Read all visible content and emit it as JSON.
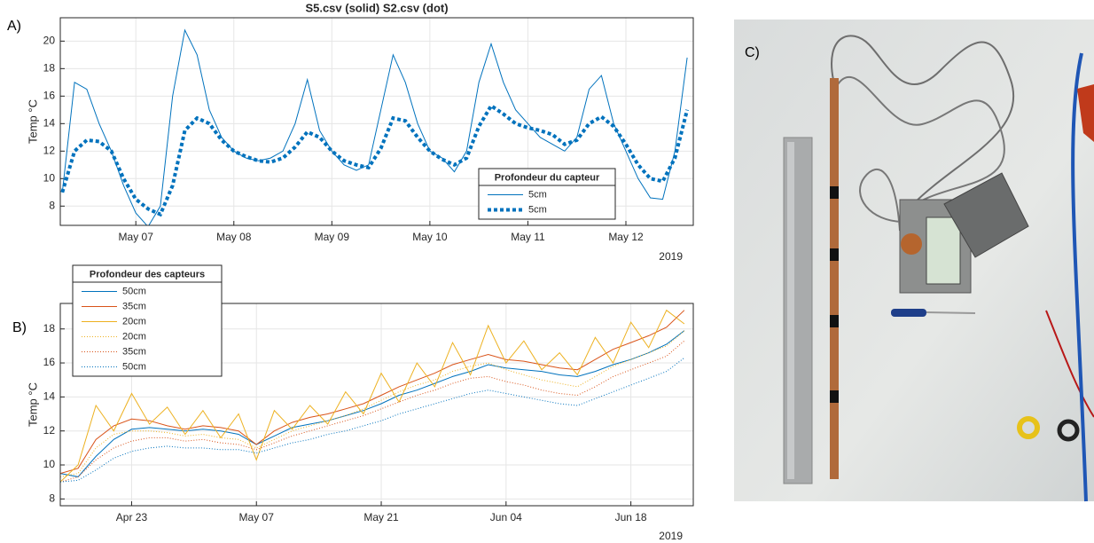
{
  "chart_data": [
    {
      "type": "line",
      "panel": "A)",
      "title": "S5.csv (solid) S2.csv (dot)",
      "ylabel": "Temp °C",
      "x_year": "2019",
      "x": [
        "2019-05-06T06:00",
        "2019-05-06T09:00",
        "2019-05-06T12:00",
        "2019-05-06T15:00",
        "2019-05-06T18:00",
        "2019-05-06T21:00",
        "2019-05-07T00:00",
        "2019-05-07T03:00",
        "2019-05-07T06:00",
        "2019-05-07T09:00",
        "2019-05-07T12:00",
        "2019-05-07T15:00",
        "2019-05-07T18:00",
        "2019-05-07T21:00",
        "2019-05-08T00:00",
        "2019-05-08T03:00",
        "2019-05-08T06:00",
        "2019-05-08T09:00",
        "2019-05-08T12:00",
        "2019-05-08T15:00",
        "2019-05-08T18:00",
        "2019-05-08T21:00",
        "2019-05-09T00:00",
        "2019-05-09T03:00",
        "2019-05-09T06:00",
        "2019-05-09T09:00",
        "2019-05-09T12:00",
        "2019-05-09T15:00",
        "2019-05-09T18:00",
        "2019-05-09T21:00",
        "2019-05-10T00:00",
        "2019-05-10T03:00",
        "2019-05-10T06:00",
        "2019-05-10T09:00",
        "2019-05-10T12:00",
        "2019-05-10T15:00",
        "2019-05-10T18:00",
        "2019-05-10T21:00",
        "2019-05-11T00:00",
        "2019-05-11T03:00",
        "2019-05-11T06:00",
        "2019-05-11T09:00",
        "2019-05-11T12:00",
        "2019-05-11T15:00",
        "2019-05-11T18:00",
        "2019-05-11T21:00",
        "2019-05-12T00:00",
        "2019-05-12T03:00",
        "2019-05-12T06:00",
        "2019-05-12T09:00",
        "2019-05-12T12:00",
        "2019-05-12T15:00"
      ],
      "series": [
        {
          "name": "5cm",
          "color": "#0072bd",
          "linestyle": "solid",
          "values": [
            9,
            17,
            16.5,
            14,
            12,
            9.5,
            7.5,
            6.5,
            8,
            16,
            20.8,
            19,
            15,
            13,
            12,
            11.5,
            11.3,
            11.5,
            12,
            14,
            17.2,
            13.5,
            12,
            11,
            10.6,
            11,
            15,
            19,
            17,
            14,
            12,
            11.5,
            10.5,
            12,
            17,
            19.8,
            17,
            15,
            14,
            13,
            12.5,
            12,
            13,
            16.5,
            17.5,
            14,
            12,
            10,
            8.6,
            8.5,
            12,
            18.8
          ]
        },
        {
          "name": "5cm",
          "color": "#0072bd",
          "linestyle": "dotted",
          "values": [
            9,
            12,
            12.8,
            12.7,
            12,
            10,
            8.5,
            7.8,
            7.4,
            9.5,
            13.5,
            14.4,
            14,
            12.8,
            12,
            11.6,
            11.3,
            11.2,
            11.5,
            12.3,
            13.4,
            13,
            12,
            11.3,
            11,
            10.8,
            12.2,
            14.4,
            14.2,
            13,
            12,
            11.4,
            11,
            11.5,
            13.8,
            15.3,
            14.7,
            14,
            13.7,
            13.5,
            13.2,
            12.5,
            12.8,
            14,
            14.5,
            13.8,
            12.5,
            11,
            10,
            9.8,
            11.5,
            15
          ]
        }
      ],
      "xlim": [
        "2019-05-06T05:30",
        "2019-05-12T16:30"
      ],
      "xticks": [
        {
          "value": "2019-05-07",
          "label": "May 07"
        },
        {
          "value": "2019-05-08",
          "label": "May 08"
        },
        {
          "value": "2019-05-09",
          "label": "May 09"
        },
        {
          "value": "2019-05-10",
          "label": "May 10"
        },
        {
          "value": "2019-05-11",
          "label": "May 11"
        },
        {
          "value": "2019-05-12",
          "label": "May 12"
        }
      ],
      "ylim": [
        6.6,
        21.7
      ],
      "yticks": [
        8,
        10,
        12,
        14,
        16,
        18,
        20
      ],
      "grid": true,
      "legend_title": "Profondeur du capteur",
      "legend_loc": "southeast"
    },
    {
      "type": "line",
      "panel": "B)",
      "ylabel": "Temp °C",
      "x_year": "2019",
      "x": [
        "2019-04-15",
        "2019-04-17",
        "2019-04-19",
        "2019-04-21",
        "2019-04-23",
        "2019-04-25",
        "2019-04-27",
        "2019-04-29",
        "2019-05-01",
        "2019-05-03",
        "2019-05-05",
        "2019-05-07",
        "2019-05-09",
        "2019-05-11",
        "2019-05-13",
        "2019-05-15",
        "2019-05-17",
        "2019-05-19",
        "2019-05-21",
        "2019-05-23",
        "2019-05-25",
        "2019-05-27",
        "2019-05-29",
        "2019-05-31",
        "2019-06-02",
        "2019-06-04",
        "2019-06-06",
        "2019-06-08",
        "2019-06-10",
        "2019-06-12",
        "2019-06-14",
        "2019-06-16",
        "2019-06-18",
        "2019-06-20",
        "2019-06-22",
        "2019-06-24"
      ],
      "series": [
        {
          "name": "50cm",
          "color": "#0072bd",
          "linestyle": "solid",
          "values": [
            9.5,
            9.3,
            10.5,
            11.5,
            12.1,
            12.2,
            12.1,
            12.0,
            12.1,
            12.0,
            11.8,
            11.2,
            11.7,
            12.2,
            12.4,
            12.6,
            12.9,
            13.2,
            13.6,
            14.1,
            14.4,
            14.8,
            15.2,
            15.5,
            15.9,
            15.7,
            15.6,
            15.5,
            15.3,
            15.2,
            15.5,
            15.9,
            16.2,
            16.6,
            17.1,
            17.9
          ]
        },
        {
          "name": "35cm",
          "color": "#d95319",
          "linestyle": "solid",
          "values": [
            9.5,
            9.8,
            11.5,
            12.3,
            12.7,
            12.6,
            12.3,
            12.1,
            12.3,
            12.2,
            12.0,
            11.2,
            12.0,
            12.5,
            12.8,
            13.0,
            13.3,
            13.6,
            14.1,
            14.6,
            15.0,
            15.4,
            15.9,
            16.2,
            16.5,
            16.2,
            16.1,
            15.9,
            15.7,
            15.6,
            16.2,
            16.8,
            17.2,
            17.6,
            18.1,
            19.1
          ]
        },
        {
          "name": "20cm",
          "color": "#edb120",
          "linestyle": "solid",
          "values": [
            9.0,
            10.0,
            13.5,
            12.0,
            14.2,
            12.4,
            13.4,
            11.8,
            13.2,
            11.6,
            13.0,
            10.3,
            13.2,
            12.1,
            13.5,
            12.4,
            14.3,
            13.0,
            15.4,
            13.7,
            16.0,
            14.6,
            17.2,
            15.3,
            18.2,
            16.0,
            17.3,
            15.6,
            16.6,
            15.3,
            17.5,
            16.0,
            18.4,
            16.9,
            19.1,
            18.3
          ]
        },
        {
          "name": "20cm",
          "color": "#edb120",
          "linestyle": "dotted",
          "values": [
            9.3,
            9.5,
            11.0,
            11.8,
            12.0,
            12.0,
            11.9,
            11.7,
            11.8,
            11.6,
            11.5,
            11.0,
            11.5,
            12.0,
            12.3,
            12.6,
            12.9,
            13.3,
            13.8,
            14.3,
            14.7,
            15.0,
            15.5,
            15.8,
            16.0,
            15.6,
            15.3,
            15.0,
            14.8,
            14.6,
            15.2,
            15.8,
            16.2,
            16.6,
            17.0,
            17.9
          ]
        },
        {
          "name": "35cm",
          "color": "#d95319",
          "linestyle": "dotted",
          "values": [
            9.0,
            9.3,
            10.3,
            11.0,
            11.4,
            11.6,
            11.6,
            11.4,
            11.5,
            11.3,
            11.2,
            10.9,
            11.3,
            11.7,
            12.0,
            12.3,
            12.6,
            12.9,
            13.3,
            13.7,
            14.1,
            14.4,
            14.8,
            15.1,
            15.2,
            14.9,
            14.7,
            14.4,
            14.2,
            14.1,
            14.6,
            15.2,
            15.6,
            16.0,
            16.4,
            17.3
          ]
        },
        {
          "name": "50cm",
          "color": "#0072bd",
          "linestyle": "dotted",
          "values": [
            9.0,
            9.1,
            9.7,
            10.4,
            10.8,
            11.0,
            11.1,
            11.0,
            11.0,
            10.9,
            10.9,
            10.7,
            11.0,
            11.3,
            11.5,
            11.8,
            12.0,
            12.3,
            12.6,
            13.0,
            13.3,
            13.6,
            13.9,
            14.2,
            14.4,
            14.2,
            14.0,
            13.8,
            13.6,
            13.5,
            13.9,
            14.3,
            14.7,
            15.1,
            15.5,
            16.3
          ]
        }
      ],
      "xlim": [
        "2019-04-15",
        "2019-06-25"
      ],
      "xticks": [
        {
          "value": "2019-04-23",
          "label": "Apr 23"
        },
        {
          "value": "2019-05-07",
          "label": "May 07"
        },
        {
          "value": "2019-05-21",
          "label": "May 21"
        },
        {
          "value": "2019-06-04",
          "label": "Jun 04"
        },
        {
          "value": "2019-06-18",
          "label": "Jun 18"
        }
      ],
      "ylim": [
        7.6,
        19.5
      ],
      "yticks": [
        8,
        10,
        12,
        14,
        16,
        18
      ],
      "grid": true,
      "legend_title": "Profondeur des capteurs",
      "legend_loc": "northwest"
    }
  ],
  "photo_panel": {
    "label": "C)"
  }
}
